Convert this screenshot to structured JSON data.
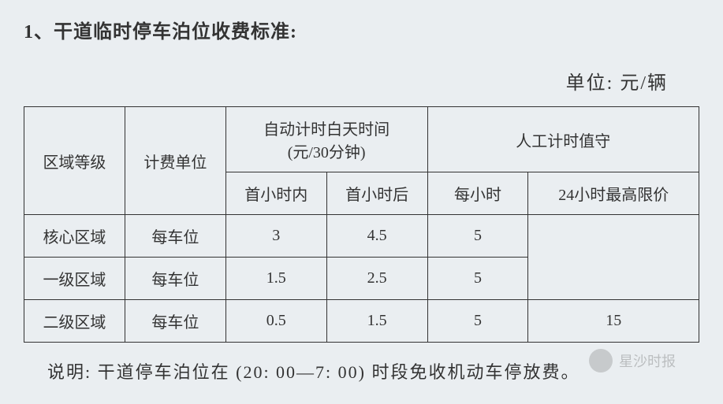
{
  "title": "1、干道临时停车泊位收费标准:",
  "unit_label": "单位: 元/辆",
  "table": {
    "headers": {
      "region_level": "区域等级",
      "billing_unit": "计费单位",
      "auto_timing": "自动计时白天时间",
      "auto_timing_sub": "(元/30分钟)",
      "manual_timing": "人工计时值守",
      "first_hour_in": "首小时内",
      "first_hour_after": "首小时后",
      "per_hour": "每小时",
      "max_24h": "24小时最高限价"
    },
    "rows": [
      {
        "region": "核心区域",
        "unit": "每车位",
        "first_in": "3",
        "first_after": "4.5",
        "per_hour": "5",
        "max_24h": ""
      },
      {
        "region": "一级区域",
        "unit": "每车位",
        "first_in": "1.5",
        "first_after": "2.5",
        "per_hour": "5",
        "max_24h": ""
      },
      {
        "region": "二级区域",
        "unit": "每车位",
        "first_in": "0.5",
        "first_after": "1.5",
        "per_hour": "5",
        "max_24h": "15"
      }
    ]
  },
  "note": "说明: 干道停车泊位在 (20: 00—7: 00) 时段免收机动车停放费。",
  "watermark": "星沙时报",
  "styling": {
    "background_color": "#eaeef1",
    "border_color": "#333",
    "text_color": "#333",
    "title_fontsize": 24,
    "cell_fontsize": 20,
    "note_fontsize": 22,
    "font_family": "SimSun"
  }
}
